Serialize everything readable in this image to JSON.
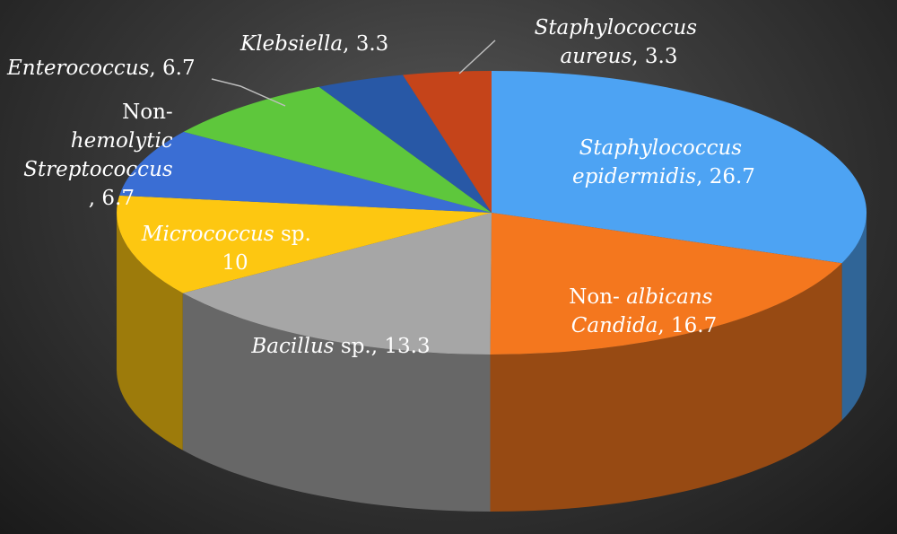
{
  "chart_data": {
    "type": "pie",
    "three_d": true,
    "title": "",
    "slices": [
      {
        "name": "Staphylococcus epidermidis",
        "value": 26.7,
        "color": "#4da3f3"
      },
      {
        "name": "Non-albicans Candida",
        "value": 16.7,
        "color": "#f4771e"
      },
      {
        "name": "Bacillus sp.",
        "value": 13.3,
        "color": "#a6a6a6"
      },
      {
        "name": "Micrococcus sp.",
        "value": 10,
        "color": "#fdc711"
      },
      {
        "name": "Non-hemolytic Streptococcus",
        "value": 6.7,
        "color": "#3a6ed4"
      },
      {
        "name": "Enterococcus",
        "value": 6.7,
        "color": "#5ec73c"
      },
      {
        "name": "Klebsiella",
        "value": 3.3,
        "color": "#2858a6"
      },
      {
        "name": "Staphylococcus aureus",
        "value": 3.3,
        "color": "#c5441a"
      }
    ]
  },
  "labels": {
    "epidermidis": {
      "line1": "Staphylococcus",
      "line2_name": "epidermidis",
      "line2_value": ", 26.7"
    },
    "candida": {
      "line1_a": "Non- ",
      "line1_b": "albicans",
      "line2_name": "Candida",
      "line2_value": ", 16.7"
    },
    "bacillus": {
      "name": "Bacillus",
      "suffix": " sp., 13.3"
    },
    "micrococcus": {
      "name": "Micrococcus",
      "suffix": " sp.",
      "value": "10"
    },
    "streptococcus": {
      "line1": "Non-",
      "line2": "hemolytic",
      "line3": "Streptococcus",
      "line4": ", 6.7"
    },
    "enterococcus": {
      "name": "Enterococcus",
      "value": ", 6.7"
    },
    "klebsiella": {
      "name": "Klebsiella",
      "value": ", 3.3"
    },
    "aureus": {
      "line1": "Staphylococcus",
      "line2_name": "aureus",
      "line2_value": ", 3.3"
    }
  }
}
